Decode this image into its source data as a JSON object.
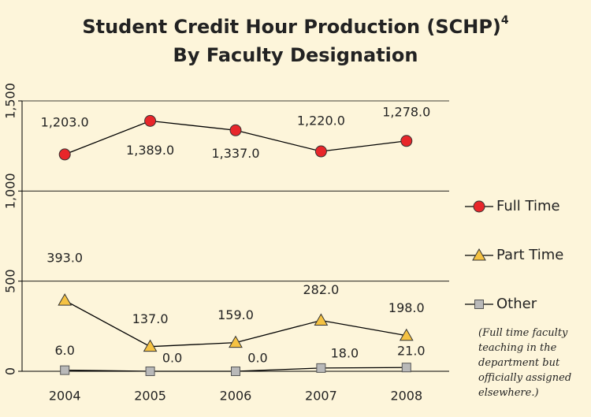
{
  "chart_data": {
    "type": "line",
    "title": "Student Credit Hour Production (SCHP)",
    "title_superscript": "4",
    "subtitle": "By Faculty Designation",
    "categories": [
      "2004",
      "2005",
      "2006",
      "2007",
      "2008"
    ],
    "series": [
      {
        "name": "Full Time",
        "color": "#e8262a",
        "marker": "circle",
        "values": [
          1203,
          1389,
          1337,
          1220,
          1278
        ],
        "value_labels": [
          "1,203.0",
          "1,389.0",
          "1,337.0",
          "1,220.0",
          "1,278.0"
        ]
      },
      {
        "name": "Part Time",
        "color": "#f5c242",
        "marker": "triangle",
        "values": [
          393,
          137,
          159,
          282,
          198
        ],
        "value_labels": [
          "393.0",
          "137.0",
          "159.0",
          "282.0",
          "198.0"
        ]
      },
      {
        "name": "Other",
        "color": "#b9b9b9",
        "marker": "square",
        "values": [
          6,
          0,
          0,
          18,
          21
        ],
        "value_labels": [
          "6.0",
          "0.0",
          "0.0",
          "18.0",
          "21.0"
        ]
      }
    ],
    "ylim": [
      0,
      1500
    ],
    "yticks": [
      0,
      500,
      {
        "value": 1000,
        "label": "1,000"
      },
      {
        "value": 1500,
        "label": "1,500"
      }
    ],
    "grid": true,
    "legend": "right",
    "annotation": "(Full time faculty teaching in the department but officially assigned elsewhere.)"
  }
}
